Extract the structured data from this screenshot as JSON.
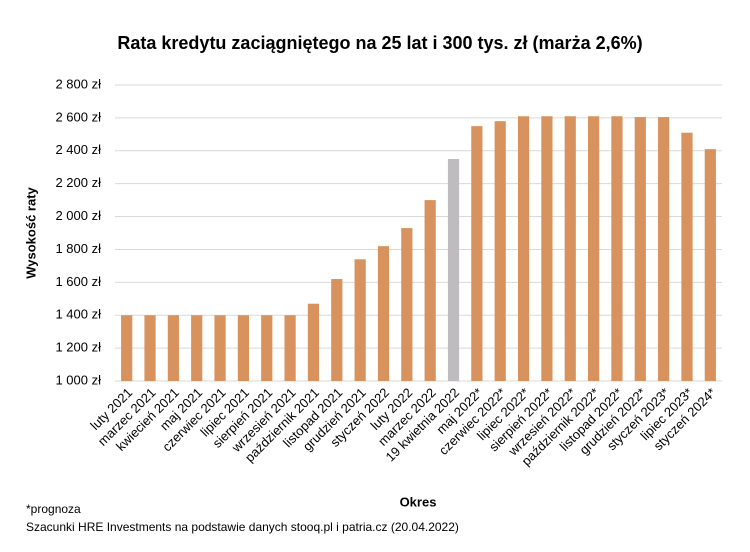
{
  "chart_data": {
    "type": "bar",
    "title": "Rata kredytu zaciągniętego na 25 lat i 300 tys. zł (marża 2,6%)",
    "x_label": "Okres",
    "y_label": "Wysokość raty",
    "categories": [
      "luty 2021",
      "marzec 2021",
      "kwiecień 2021",
      "maj 2021",
      "czerwiec 2021",
      "lipiec 2021",
      "sierpień 2021",
      "wrzesień 2021",
      "październik 2021",
      "listopad 2021",
      "grudzień 2021",
      "styczeń 2022",
      "luty 2022",
      "marzec 2022",
      "19 kwietnia 2022",
      "maj 2022*",
      "czerwiec 2022*",
      "lipiec 2022*",
      "sierpień 2022*",
      "wrzesień 2022*",
      "październik 2022*",
      "listopad 2022*",
      "grudzień 2022*",
      "styczeń 2023*",
      "lipiec 2023*",
      "styczeń 2024*"
    ],
    "series": [
      {
        "values": [
          1400,
          1400,
          1400,
          1400,
          1400,
          1400,
          1400,
          1400,
          1470,
          1620,
          1740,
          1820,
          1930,
          2100,
          2350,
          2550,
          2580,
          2610,
          2610,
          2610,
          2610,
          2610,
          2605,
          2605,
          2510,
          2410
        ],
        "colors": [
          "#d8925e",
          "#d8925e",
          "#d8925e",
          "#d8925e",
          "#d8925e",
          "#d8925e",
          "#d8925e",
          "#d8925e",
          "#d8925e",
          "#d8925e",
          "#d8925e",
          "#d8925e",
          "#d8925e",
          "#d8925e",
          "#bfbcbf",
          "#d8925e",
          "#d8925e",
          "#d8925e",
          "#d8925e",
          "#d8925e",
          "#d8925e",
          "#d8925e",
          "#d8925e",
          "#d8925e",
          "#d8925e",
          "#d8925e"
        ]
      }
    ],
    "ylim": [
      1000,
      2800
    ],
    "yticks": [
      {
        "value": 1000,
        "label": "1 000 zł"
      },
      {
        "value": 1200,
        "label": "1 200 zł"
      },
      {
        "value": 1400,
        "label": "1 400 zł"
      },
      {
        "value": 1600,
        "label": "1 600 zł"
      },
      {
        "value": 1800,
        "label": "1 800 zł"
      },
      {
        "value": 2000,
        "label": "2 000 zł"
      },
      {
        "value": 2200,
        "label": "2 200 zł"
      },
      {
        "value": 2400,
        "label": "2 400 zł"
      },
      {
        "value": 2600,
        "label": "2 600 zł"
      },
      {
        "value": 2800,
        "label": "2 800 zł"
      }
    ],
    "grid": true,
    "notes": [
      "*prognoza",
      "Szacunki HRE Investments na podstawie danych stooq.pl i patria.cz (20.04.2022)"
    ]
  }
}
